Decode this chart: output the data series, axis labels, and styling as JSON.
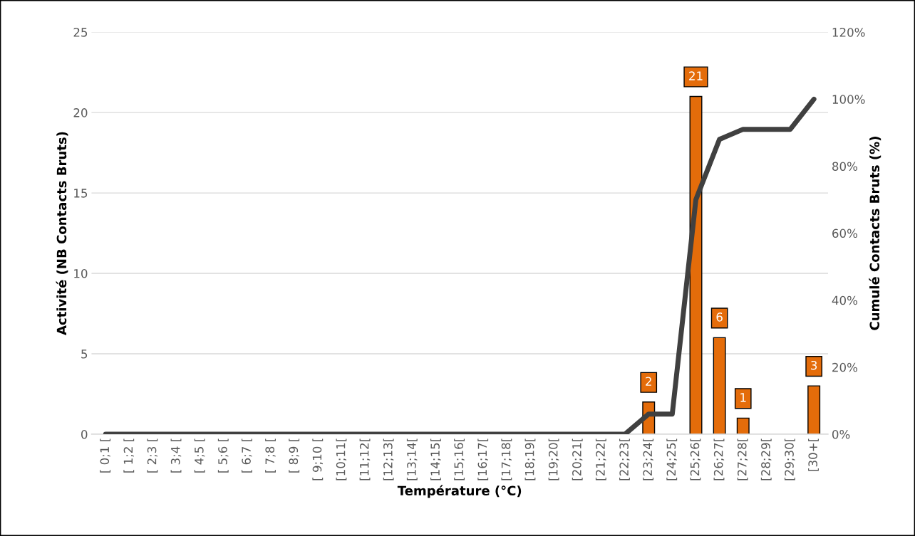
{
  "chart_data": {
    "type": "bar",
    "xlabel": "Température (°C)",
    "ylabel": "Activité (NB Contacts Bruts)",
    "y2label": "Cumulé Contacts Bruts (%)",
    "categories": [
      "[ 0;1 [",
      "[ 1;2 [",
      "[ 2;3 [",
      "[ 3;4 [",
      "[ 4;5 [",
      "[ 5;6 [",
      "[ 6;7 [",
      "[ 7;8 [",
      "[ 8;9 [",
      "[ 9;10 [",
      "[10;11[",
      "[11;12[",
      "[12;13[",
      "[13;14[",
      "[14;15[",
      "[15;16[",
      "[16;17[",
      "[17;18[",
      "[18;19[",
      "[19;20[",
      "[20;21[",
      "[21;22[",
      "[22;23[",
      "[23;24[",
      "[24;25[",
      "[25;26[",
      "[26;27[",
      "[27;28[",
      "[28;29[",
      "[29;30[",
      "[30+["
    ],
    "series": [
      {
        "color": "#e46c0a",
        "values": [
          0,
          0,
          0,
          0,
          0,
          0,
          0,
          0,
          0,
          0,
          0,
          0,
          0,
          0,
          0,
          0,
          0,
          0,
          0,
          0,
          0,
          0,
          0,
          2,
          0,
          21,
          6,
          1,
          0,
          0,
          3
        ],
        "value_labels": [
          null,
          null,
          null,
          null,
          null,
          null,
          null,
          null,
          null,
          null,
          null,
          null,
          null,
          null,
          null,
          null,
          null,
          null,
          null,
          null,
          null,
          null,
          null,
          "2",
          null,
          "21",
          "6",
          "1",
          null,
          null,
          "3"
        ]
      },
      {
        "type": "line",
        "axis": "y2",
        "color": "#404040",
        "values": [
          0,
          0,
          0,
          0,
          0,
          0,
          0,
          0,
          0,
          0,
          0,
          0,
          0,
          0,
          0,
          0,
          0,
          0,
          0,
          0,
          0,
          0,
          0,
          6,
          6,
          70,
          88,
          91,
          91,
          91,
          100
        ]
      }
    ],
    "ylim": [
      0,
      25
    ],
    "yticks": [
      0,
      5,
      10,
      15,
      20,
      25
    ],
    "y2lim": [
      0,
      120
    ],
    "y2ticks": [
      {
        "value": 0,
        "label": "0%"
      },
      {
        "value": 20,
        "label": "20%"
      },
      {
        "value": 40,
        "label": "40%"
      },
      {
        "value": 60,
        "label": "60%"
      },
      {
        "value": 80,
        "label": "80%"
      },
      {
        "value": 100,
        "label": "100%"
      },
      {
        "value": 120,
        "label": "120%"
      }
    ],
    "grid": "y",
    "legend": false,
    "marker": "none",
    "line_style": "solid"
  }
}
